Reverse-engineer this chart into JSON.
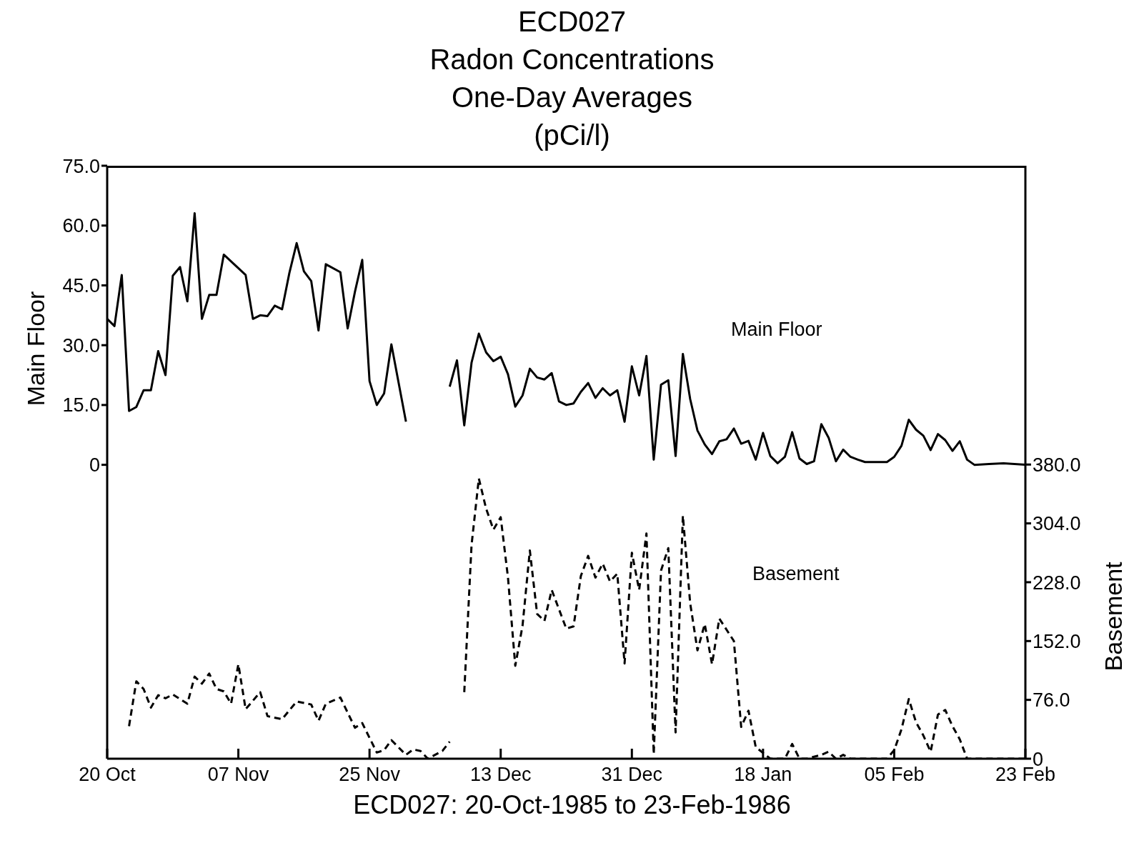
{
  "chart_data": {
    "type": "line",
    "title": "ECD027\nRadon Concentrations\nOne-Day Averages\n(pCi/l)",
    "xlabel": "ECD027:  20-Oct-1985 to 23-Feb-1986",
    "ylabel": "Main Floor",
    "y2label": "Basement",
    "xlim": [
      "1985-10-20",
      "1986-02-23"
    ],
    "xticks": [
      {
        "value": "1985-10-20",
        "label": "20 Oct"
      },
      {
        "value": "1985-11-07",
        "label": "07 Nov"
      },
      {
        "value": "1985-11-25",
        "label": "25 Nov"
      },
      {
        "value": "1985-12-13",
        "label": "13 Dec"
      },
      {
        "value": "1985-12-31",
        "label": "31 Dec"
      },
      {
        "value": "1986-01-18",
        "label": "18 Jan"
      },
      {
        "value": "1986-02-05",
        "label": "05 Feb"
      },
      {
        "value": "1986-02-23",
        "label": "23 Feb"
      }
    ],
    "ylim": [
      -73.7,
      75
    ],
    "yticks": [
      0,
      {
        "value": 15,
        "label": "15.0"
      },
      {
        "value": 30,
        "label": "30.0"
      },
      {
        "value": 45,
        "label": "45.0"
      },
      {
        "value": 60,
        "label": "60.0"
      },
      {
        "value": 75,
        "label": "75.0"
      }
    ],
    "y2lim": [
      0,
      766
    ],
    "y2ticks": [
      0,
      {
        "value": 76,
        "label": "76.0"
      },
      {
        "value": 152,
        "label": "152.0"
      },
      {
        "value": 228,
        "label": "228.0"
      },
      {
        "value": 304,
        "label": "304.0"
      },
      {
        "value": 380,
        "label": "380.0"
      }
    ],
    "grid": false,
    "legend": false,
    "marker": "none",
    "series": [
      {
        "name": "Main Floor",
        "color": "#000000",
        "line_style": "solid",
        "x": [
          "1985-10-20",
          "1985-10-21",
          "1985-10-22",
          "1985-10-23",
          "1985-10-24",
          "1985-10-25",
          "1985-10-26",
          "1985-10-27",
          "1985-10-28",
          "1985-10-29",
          "1985-10-30",
          "1985-10-31",
          "1985-11-01",
          "1985-11-02",
          "1985-11-03",
          "1985-11-04",
          "1985-11-05",
          "1985-11-08",
          "1985-11-09",
          "1985-11-10",
          "1985-11-11",
          "1985-11-12",
          "1985-11-13",
          "1985-11-14",
          "1985-11-15",
          "1985-11-16",
          "1985-11-17",
          "1985-11-18",
          "1985-11-19",
          "1985-11-21",
          "1985-11-22",
          "1985-11-23",
          "1985-11-24",
          "1985-11-25",
          "1985-11-26",
          "1985-11-27",
          "1985-11-28",
          "1985-11-29",
          "1985-11-30",
          "1985-12-03",
          "1985-12-06",
          "1985-12-07",
          "1985-12-08",
          "1985-12-09",
          "1985-12-10",
          "1985-12-11",
          "1985-12-12",
          "1985-12-13",
          "1985-12-14",
          "1985-12-15",
          "1985-12-16",
          "1985-12-17",
          "1985-12-18",
          "1985-12-19",
          "1985-12-20",
          "1985-12-21",
          "1985-12-22",
          "1985-12-23",
          "1985-12-24",
          "1985-12-25",
          "1985-12-26",
          "1985-12-27",
          "1985-12-28",
          "1985-12-29",
          "1985-12-30",
          "1985-12-31",
          "1986-01-01",
          "1986-01-02",
          "1986-01-03",
          "1986-01-04",
          "1986-01-05",
          "1986-01-06",
          "1986-01-07",
          "1986-01-08",
          "1986-01-09",
          "1986-01-10",
          "1986-01-11",
          "1986-01-12",
          "1986-01-13",
          "1986-01-14",
          "1986-01-15",
          "1986-01-16",
          "1986-01-17",
          "1986-01-18",
          "1986-01-19",
          "1986-01-20",
          "1986-01-21",
          "1986-01-22",
          "1986-01-23",
          "1986-01-24",
          "1986-01-25",
          "1986-01-26",
          "1986-01-27",
          "1986-01-28",
          "1986-01-29",
          "1986-01-30",
          "1986-01-31",
          "1986-02-01",
          "1986-02-03",
          "1986-02-04",
          "1986-02-05",
          "1986-02-06",
          "1986-02-07",
          "1986-02-08",
          "1986-02-09",
          "1986-02-10",
          "1986-02-11",
          "1986-02-12",
          "1986-02-13",
          "1986-02-14",
          "1986-02-15",
          "1986-02-16",
          "1986-02-18",
          "1986-02-20",
          "1986-02-23"
        ],
        "values": [
          36.6,
          34.8,
          47.6,
          13.5,
          14.5,
          18.7,
          18.7,
          28.5,
          22.5,
          47.4,
          49.6,
          41,
          63.1,
          36.6,
          42.6,
          42.6,
          52.7,
          47.6,
          36.6,
          37.5,
          37.3,
          39.9,
          39,
          48.1,
          55.6,
          48.5,
          46.1,
          33.7,
          50.3,
          48.3,
          34.2,
          43.4,
          51.4,
          21,
          15,
          17.9,
          30.2,
          20.5,
          10.8,
          null,
          19.6,
          26.2,
          9.9,
          25.6,
          32.9,
          28.2,
          26,
          27.1,
          22.7,
          14.6,
          17.4,
          24.1,
          21.9,
          21.4,
          23,
          15.9,
          15,
          15.4,
          18.3,
          20.5,
          16.8,
          19.2,
          17.4,
          18.7,
          10.8,
          24.7,
          17.4,
          27.3,
          1.3,
          20.1,
          21.2,
          2.2,
          27.8,
          16.5,
          8.6,
          5.1,
          2.7,
          5.9,
          6.4,
          9.1,
          5.3,
          6,
          1.3,
          8,
          2.2,
          0.4,
          2,
          8.2,
          1.6,
          0.2,
          0.9,
          10.2,
          6.8,
          0.9,
          3.8,
          2,
          1.3,
          0.7,
          0.7,
          0.7,
          2,
          4.8,
          11.3,
          8.8,
          7.3,
          3.7,
          7.7,
          6.2,
          3.5,
          5.9,
          1.3,
          0,
          0.2,
          0.4,
          0
        ]
      },
      {
        "name": "Basement",
        "color": "#000000",
        "line_style": "dashed",
        "axis": "y2",
        "x": [
          "1985-10-23",
          "1985-10-24",
          "1985-10-25",
          "1985-10-26",
          "1985-10-27",
          "1985-10-28",
          "1985-10-29",
          "1985-10-31",
          "1985-11-01",
          "1985-11-02",
          "1985-11-03",
          "1985-11-04",
          "1985-11-05",
          "1985-11-06",
          "1985-11-07",
          "1985-11-08",
          "1985-11-10",
          "1985-11-11",
          "1985-11-13",
          "1985-11-15",
          "1985-11-17",
          "1985-11-18",
          "1985-11-19",
          "1985-11-21",
          "1985-11-23",
          "1985-11-24",
          "1985-11-26",
          "1985-11-27",
          "1985-11-28",
          "1985-11-30",
          "1985-12-01",
          "1985-12-02",
          "1985-12-03",
          "1985-12-05",
          "1985-12-06",
          "1985-12-07",
          "1985-12-08",
          "1985-12-09",
          "1985-12-10",
          "1985-12-11",
          "1985-12-12",
          "1985-12-13",
          "1985-12-14",
          "1985-12-15",
          "1985-12-16",
          "1985-12-17",
          "1985-12-18",
          "1985-12-19",
          "1985-12-20",
          "1985-12-22",
          "1985-12-23",
          "1985-12-24",
          "1985-12-25",
          "1985-12-26",
          "1985-12-27",
          "1985-12-28",
          "1985-12-29",
          "1985-12-30",
          "1985-12-31",
          "1986-01-01",
          "1986-01-02",
          "1986-01-03",
          "1986-01-04",
          "1986-01-05",
          "1986-01-06",
          "1986-01-07",
          "1986-01-08",
          "1986-01-09",
          "1986-01-10",
          "1986-01-11",
          "1986-01-12",
          "1986-01-14",
          "1986-01-15",
          "1986-01-16",
          "1986-01-17",
          "1986-01-19",
          "1986-01-20",
          "1986-01-21",
          "1986-01-22",
          "1986-01-23",
          "1986-01-24",
          "1986-01-26",
          "1986-01-27",
          "1986-01-28",
          "1986-01-29",
          "1986-01-30",
          "1986-02-01",
          "1986-02-03",
          "1986-02-04",
          "1986-02-05",
          "1986-02-06",
          "1986-02-07",
          "1986-02-08",
          "1986-02-09",
          "1986-02-10",
          "1986-02-11",
          "1986-02-12",
          "1986-02-13",
          "1986-02-14",
          "1986-02-15",
          "1986-02-16",
          "1986-02-23"
        ],
        "values": [
          42,
          100,
          90,
          66,
          82,
          78,
          83,
          71,
          106,
          97,
          110,
          90,
          87,
          71,
          122,
          64,
          86,
          55,
          51,
          74,
          70,
          49,
          71,
          79,
          40,
          46,
          8,
          11,
          24,
          5,
          12,
          10,
          0,
          10,
          22,
          null,
          86,
          276,
          362,
          323,
          296,
          312,
          234,
          120,
          172,
          269,
          187,
          178,
          218,
          168,
          171,
          236,
          262,
          234,
          252,
          229,
          239,
          123,
          266,
          218,
          291,
          6,
          243,
          272,
          34,
          314,
          201,
          140,
          174,
          122,
          181,
          152,
          41,
          62,
          15,
          0,
          0,
          0,
          19,
          0,
          0,
          5,
          9,
          0,
          5,
          0,
          0,
          0,
          0,
          11,
          38,
          77,
          47,
          30,
          9,
          57,
          63,
          42,
          25,
          0,
          0,
          0
        ]
      }
    ]
  }
}
